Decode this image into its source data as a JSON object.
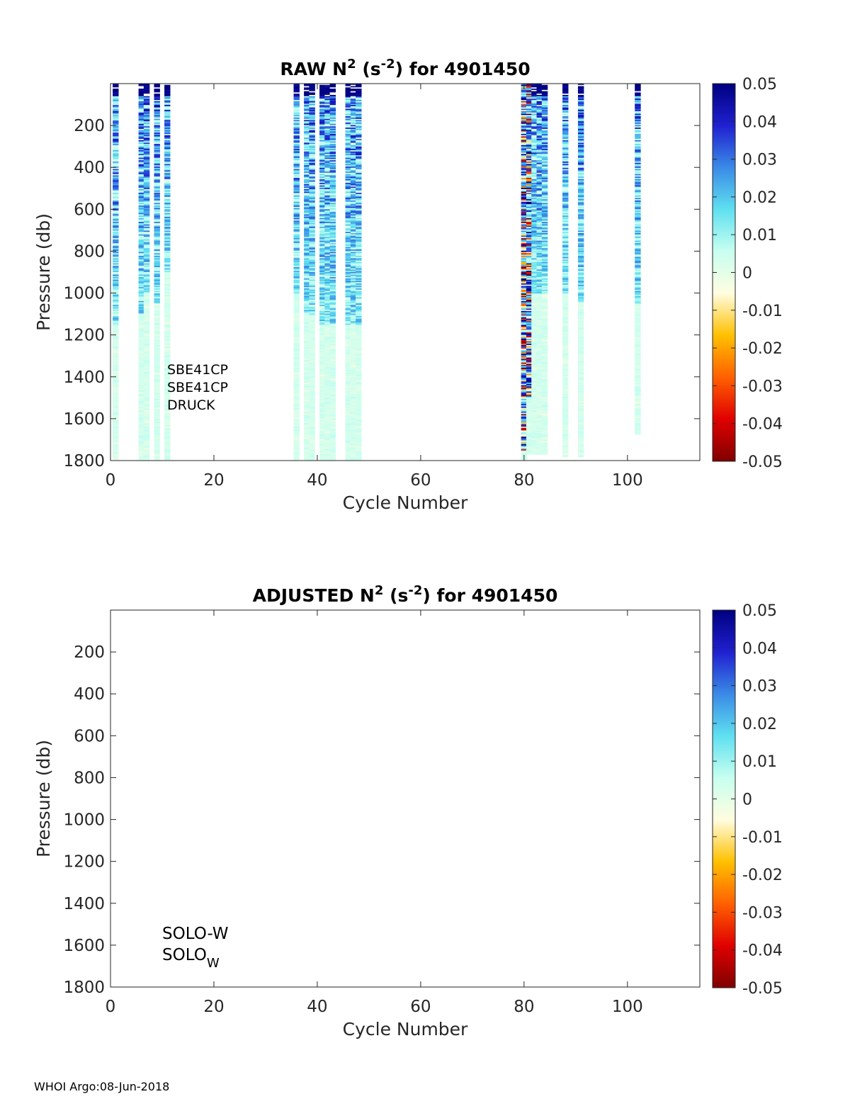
{
  "footer": "WHOI Argo:08-Jun-2018",
  "chart_data": [
    {
      "type": "heatmap",
      "title": {
        "prefix": "RAW N",
        "sup1": "2",
        "mid": " (s",
        "sup2": "-2",
        "suffix": ") for 4901450"
      },
      "xlabel": "Cycle Number",
      "ylabel": "Pressure (db)",
      "xlim": [
        0,
        114
      ],
      "ylim": [
        0,
        1800
      ],
      "y_reversed": true,
      "xticks": [
        0,
        20,
        40,
        60,
        80,
        100
      ],
      "yticks": [
        200,
        400,
        600,
        800,
        1000,
        1200,
        1400,
        1600,
        1800
      ],
      "colorbar": {
        "clim": [
          -0.05,
          0.05
        ],
        "ticks": [
          "0.05",
          "0.04",
          "0.03",
          "0.02",
          "0.01",
          "0",
          "-0.01",
          "-0.02",
          "-0.03",
          "-0.04",
          "-0.05"
        ],
        "colormap": [
          "#800000",
          "#e00000",
          "#ff6000",
          "#ffc000",
          "#fffde0",
          "#c8fff0",
          "#5fe0f0",
          "#3a8ae6",
          "#2020d0",
          "#000080"
        ]
      },
      "annotation": [
        "SBE41CP",
        "SBE41CP",
        "DRUCK"
      ],
      "columns": [
        {
          "cycle": 1,
          "max_pressure": 1790,
          "dense_to": 1150,
          "pattern": "strong"
        },
        {
          "cycle": 6,
          "max_pressure": 1800,
          "dense_to": 1100,
          "pattern": "strong"
        },
        {
          "cycle": 7,
          "max_pressure": 1800,
          "dense_to": 1000,
          "pattern": "strong"
        },
        {
          "cycle": 9,
          "max_pressure": 1800,
          "dense_to": 1050,
          "pattern": "strong"
        },
        {
          "cycle": 11,
          "max_pressure": 1790,
          "dense_to": 900,
          "pattern": "strong"
        },
        {
          "cycle": 36,
          "max_pressure": 1800,
          "dense_to": 1000,
          "pattern": "strong"
        },
        {
          "cycle": 38,
          "max_pressure": 1800,
          "dense_to": 1100,
          "pattern": "strong"
        },
        {
          "cycle": 39,
          "max_pressure": 1800,
          "dense_to": 1100,
          "pattern": "strong"
        },
        {
          "cycle": 41,
          "max_pressure": 1800,
          "dense_to": 1150,
          "pattern": "strong"
        },
        {
          "cycle": 42,
          "max_pressure": 1800,
          "dense_to": 1150,
          "pattern": "strong"
        },
        {
          "cycle": 43,
          "max_pressure": 1800,
          "dense_to": 1150,
          "pattern": "strong"
        },
        {
          "cycle": 46,
          "max_pressure": 1800,
          "dense_to": 1150,
          "pattern": "strong"
        },
        {
          "cycle": 47,
          "max_pressure": 1800,
          "dense_to": 1150,
          "pattern": "strong"
        },
        {
          "cycle": 48,
          "max_pressure": 1800,
          "dense_to": 1150,
          "pattern": "strong"
        },
        {
          "cycle": 80,
          "max_pressure": 1790,
          "dense_to": 1750,
          "pattern": "noisy"
        },
        {
          "cycle": 81,
          "max_pressure": 1770,
          "dense_to": 1500,
          "pattern": "noisy"
        },
        {
          "cycle": 82,
          "max_pressure": 1770,
          "dense_to": 1000,
          "pattern": "strong"
        },
        {
          "cycle": 83,
          "max_pressure": 1770,
          "dense_to": 1000,
          "pattern": "strong"
        },
        {
          "cycle": 84,
          "max_pressure": 1770,
          "dense_to": 1000,
          "pattern": "strong"
        },
        {
          "cycle": 88,
          "max_pressure": 1780,
          "dense_to": 1000,
          "pattern": "strong"
        },
        {
          "cycle": 91,
          "max_pressure": 1780,
          "dense_to": 1050,
          "pattern": "strong"
        },
        {
          "cycle": 102,
          "max_pressure": 1670,
          "dense_to": 1050,
          "pattern": "strong"
        }
      ]
    },
    {
      "type": "heatmap",
      "title": {
        "prefix": "ADJUSTED N",
        "sup1": "2",
        "mid": " (s",
        "sup2": "-2",
        "suffix": ") for 4901450"
      },
      "xlabel": "Cycle Number",
      "ylabel": "Pressure (db)",
      "xlim": [
        0,
        114
      ],
      "ylim": [
        0,
        1800
      ],
      "y_reversed": true,
      "xticks": [
        0,
        20,
        40,
        60,
        80,
        100
      ],
      "yticks": [
        200,
        400,
        600,
        800,
        1000,
        1200,
        1400,
        1600,
        1800
      ],
      "colorbar": {
        "clim": [
          -0.05,
          0.05
        ],
        "ticks": [
          "0.05",
          "0.04",
          "0.03",
          "0.02",
          "0.01",
          "0",
          "-0.01",
          "-0.02",
          "-0.03",
          "-0.04",
          "-0.05"
        ],
        "colormap": [
          "#800000",
          "#e00000",
          "#ff6000",
          "#ffc000",
          "#fffde0",
          "#c8fff0",
          "#5fe0f0",
          "#3a8ae6",
          "#2020d0",
          "#000080"
        ]
      },
      "annotation": [
        "SOLO-W",
        {
          "base": "SOLO",
          "sub": "W"
        }
      ],
      "columns": []
    }
  ]
}
